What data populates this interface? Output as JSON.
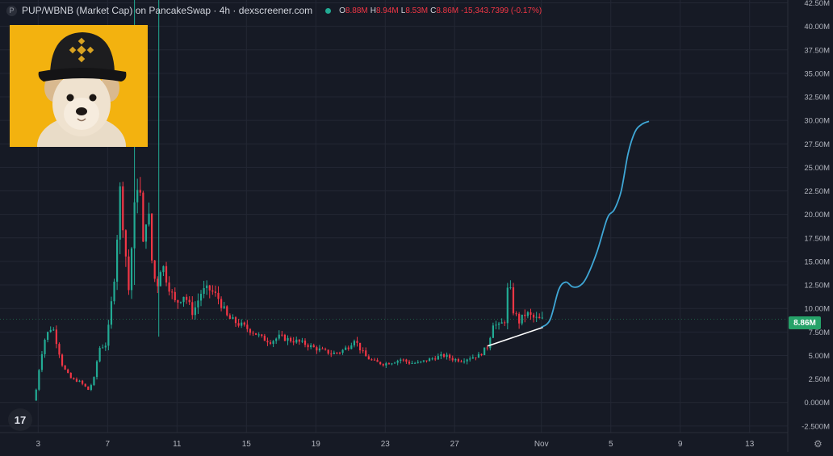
{
  "header": {
    "symbol_icon": "P",
    "title": "PUP/WBNB (Market Cap) on PancakeSwap · 4h · dexscreener.com",
    "status_dot_color": "#22ab94",
    "ohlc": [
      {
        "key": "O",
        "value": "8.88M"
      },
      {
        "key": "H",
        "value": "8.94M"
      },
      {
        "key": "L",
        "value": "8.53M"
      },
      {
        "key": "C",
        "value": "8.86M"
      },
      {
        "key": "",
        "value": "-15,343.7399 (-0.17%)"
      }
    ]
  },
  "logo": {
    "icon": "dog-with-binance-cap-image"
  },
  "tv_logo_text": "17",
  "settings_icon": "gear-icon",
  "last_price_label": "8.86M",
  "colors": {
    "up": "#22ab94",
    "down": "#f23645",
    "projection": "#3fa7d6",
    "trendline": "#ffffff",
    "price_tag": "#26a269"
  },
  "chart_data": {
    "type": "candlestick",
    "title": "PUP/WBNB (Market Cap) on PancakeSwap · 4h · dexscreener.com",
    "x_tick_labels": [
      "3",
      "7",
      "11",
      "15",
      "19",
      "23",
      "27",
      "Nov",
      "5",
      "9",
      "13"
    ],
    "x_tick_day_index": [
      3,
      7,
      11,
      15,
      19,
      23,
      27,
      32,
      36,
      40,
      44
    ],
    "x_range_days": [
      0.8,
      46.2
    ],
    "y_tick_labels": [
      "-2.500M",
      "0.000M",
      "2.50M",
      "5.00M",
      "7.50M",
      "10.00M",
      "12.50M",
      "15.00M",
      "17.50M",
      "20.00M",
      "22.50M",
      "25.00M",
      "27.50M",
      "30.00M",
      "32.50M",
      "35.00M",
      "37.50M",
      "40.00M",
      "42.50M"
    ],
    "y_tick_values": [
      -2.5,
      0,
      2.5,
      5,
      7.5,
      10,
      12.5,
      15,
      17.5,
      20,
      22.5,
      25,
      27.5,
      30,
      32.5,
      35,
      37.5,
      40,
      42.5
    ],
    "y_unit": "M",
    "ylim": [
      -3.2,
      42.8
    ],
    "grid": true,
    "last_price": 8.86,
    "anchor_prices": [
      [
        2.8,
        0.2
      ],
      [
        3.0,
        1.6
      ],
      [
        3.2,
        4.5
      ],
      [
        3.5,
        7.0
      ],
      [
        3.9,
        8.2
      ],
      [
        4.2,
        6.0
      ],
      [
        4.5,
        3.8
      ],
      [
        5.0,
        2.5
      ],
      [
        5.5,
        2.2
      ],
      [
        6.0,
        1.3
      ],
      [
        6.3,
        2.6
      ],
      [
        6.6,
        5.8
      ],
      [
        7.0,
        6.2
      ],
      [
        7.2,
        8.8
      ],
      [
        7.5,
        14.0
      ],
      [
        7.8,
        22.5
      ],
      [
        8.0,
        18.5
      ],
      [
        8.3,
        12.0
      ],
      [
        8.6,
        20.0
      ],
      [
        8.9,
        25.0
      ],
      [
        9.1,
        16.0
      ],
      [
        9.4,
        21.5
      ],
      [
        9.6,
        15.5
      ],
      [
        9.9,
        12.0
      ],
      [
        10.2,
        15.0
      ],
      [
        10.5,
        13.0
      ],
      [
        10.8,
        11.5
      ],
      [
        11.0,
        10.5
      ],
      [
        11.5,
        11.5
      ],
      [
        12.0,
        9.5
      ],
      [
        12.5,
        11.8
      ],
      [
        13.0,
        12.0
      ],
      [
        13.5,
        11.0
      ],
      [
        14.0,
        9.0
      ],
      [
        14.5,
        8.5
      ],
      [
        15.0,
        8.0
      ],
      [
        15.5,
        7.5
      ],
      [
        16.0,
        6.8
      ],
      [
        16.5,
        6.5
      ],
      [
        17.0,
        7.0
      ],
      [
        17.5,
        6.7
      ],
      [
        18.0,
        6.5
      ],
      [
        18.5,
        6.2
      ],
      [
        19.0,
        5.8
      ],
      [
        19.5,
        5.5
      ],
      [
        20.0,
        5.2
      ],
      [
        20.5,
        5.4
      ],
      [
        21.0,
        6.0
      ],
      [
        21.3,
        6.8
      ],
      [
        21.6,
        5.8
      ],
      [
        22.0,
        4.8
      ],
      [
        22.5,
        4.3
      ],
      [
        23.0,
        4.1
      ],
      [
        23.5,
        4.3
      ],
      [
        24.0,
        4.6
      ],
      [
        24.5,
        4.2
      ],
      [
        25.0,
        4.2
      ],
      [
        25.5,
        4.5
      ],
      [
        26.0,
        4.8
      ],
      [
        26.5,
        5.0
      ],
      [
        27.0,
        4.6
      ],
      [
        27.5,
        4.5
      ],
      [
        28.0,
        4.8
      ],
      [
        28.5,
        5.0
      ],
      [
        29.0,
        6.0
      ],
      [
        29.3,
        8.5
      ],
      [
        29.6,
        8.0
      ],
      [
        30.0,
        8.8
      ],
      [
        30.2,
        13.5
      ],
      [
        30.4,
        10.0
      ],
      [
        30.8,
        8.6
      ],
      [
        31.2,
        9.5
      ],
      [
        31.6,
        9.0
      ],
      [
        32.0,
        8.8
      ]
    ],
    "spikes": [
      {
        "day": 8.55,
        "high": 50,
        "low": 12.5
      },
      {
        "day": 9.95,
        "high": 50,
        "low": 7.0
      }
    ],
    "trendline": {
      "x": [
        28.9,
        32.1
      ],
      "y": [
        6.0,
        8.0
      ]
    },
    "projection": {
      "x": [
        32.0,
        32.5,
        33.0,
        33.4,
        33.8,
        34.2,
        34.6,
        35.2,
        35.8,
        36.2,
        36.6,
        37.0,
        37.4,
        37.8,
        38.2
      ],
      "y": [
        8.0,
        8.8,
        12.0,
        12.8,
        12.3,
        12.4,
        13.3,
        16.0,
        19.6,
        20.5,
        22.5,
        26.5,
        28.8,
        29.6,
        29.9
      ]
    }
  }
}
